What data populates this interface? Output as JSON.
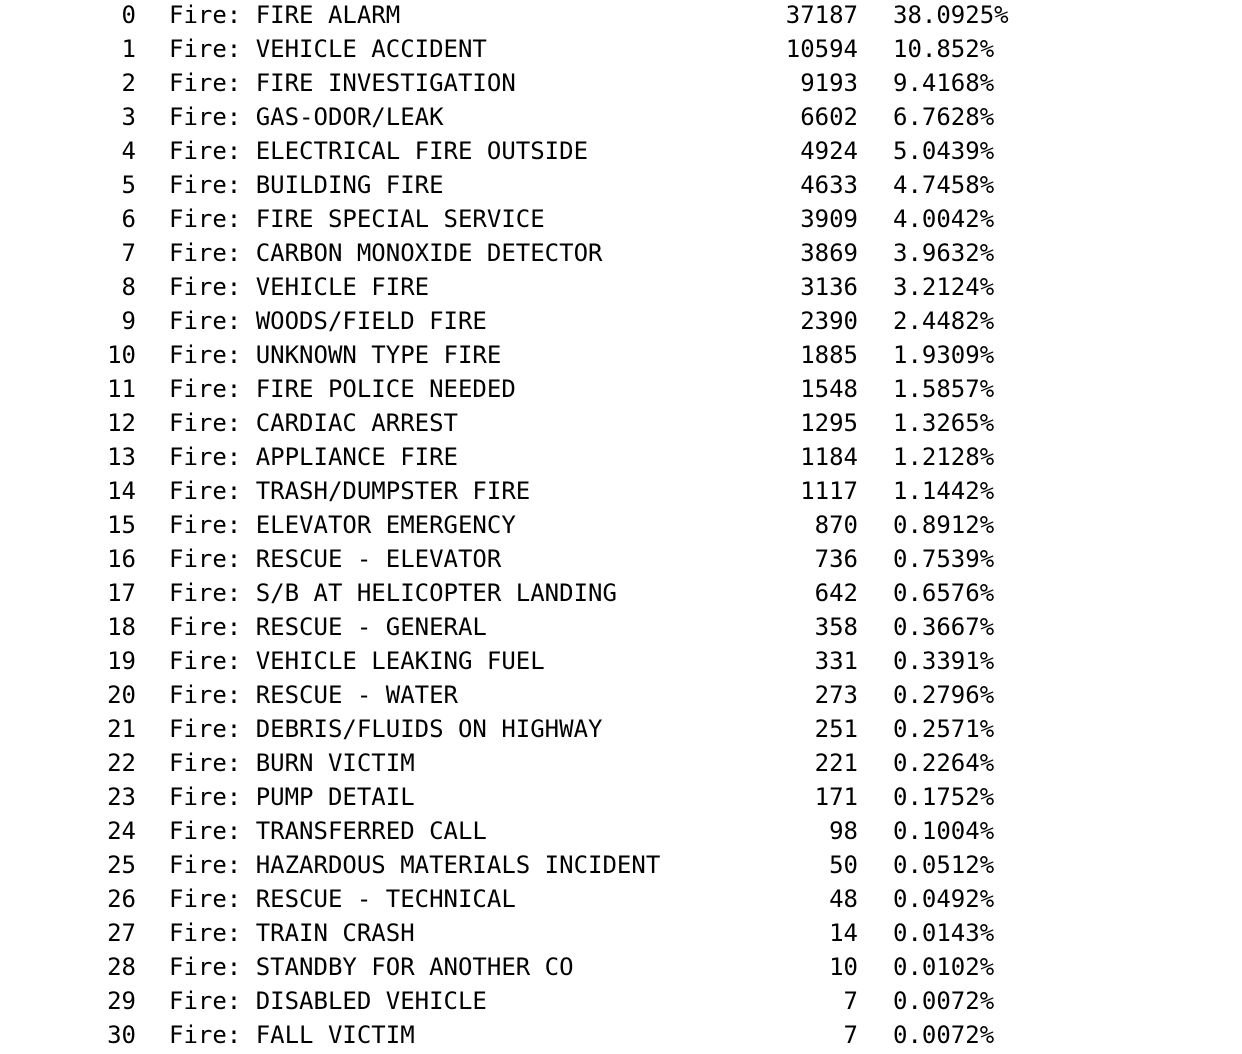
{
  "rows": [
    {
      "index": "0",
      "label": "Fire: FIRE ALARM",
      "count": "37187",
      "percent": "38.0925%"
    },
    {
      "index": "1",
      "label": "Fire: VEHICLE ACCIDENT",
      "count": "10594",
      "percent": "10.852%"
    },
    {
      "index": "2",
      "label": "Fire: FIRE INVESTIGATION",
      "count": "9193",
      "percent": "9.4168%"
    },
    {
      "index": "3",
      "label": "Fire: GAS-ODOR/LEAK",
      "count": "6602",
      "percent": "6.7628%"
    },
    {
      "index": "4",
      "label": "Fire: ELECTRICAL FIRE OUTSIDE",
      "count": "4924",
      "percent": "5.0439%"
    },
    {
      "index": "5",
      "label": "Fire: BUILDING FIRE",
      "count": "4633",
      "percent": "4.7458%"
    },
    {
      "index": "6",
      "label": "Fire: FIRE SPECIAL SERVICE",
      "count": "3909",
      "percent": "4.0042%"
    },
    {
      "index": "7",
      "label": "Fire: CARBON MONOXIDE DETECTOR",
      "count": "3869",
      "percent": "3.9632%"
    },
    {
      "index": "8",
      "label": "Fire: VEHICLE FIRE",
      "count": "3136",
      "percent": "3.2124%"
    },
    {
      "index": "9",
      "label": "Fire: WOODS/FIELD FIRE",
      "count": "2390",
      "percent": "2.4482%"
    },
    {
      "index": "10",
      "label": "Fire: UNKNOWN TYPE FIRE",
      "count": "1885",
      "percent": "1.9309%"
    },
    {
      "index": "11",
      "label": "Fire: FIRE POLICE NEEDED",
      "count": "1548",
      "percent": "1.5857%"
    },
    {
      "index": "12",
      "label": "Fire: CARDIAC ARREST",
      "count": "1295",
      "percent": "1.3265%"
    },
    {
      "index": "13",
      "label": "Fire: APPLIANCE FIRE",
      "count": "1184",
      "percent": "1.2128%"
    },
    {
      "index": "14",
      "label": "Fire: TRASH/DUMPSTER FIRE",
      "count": "1117",
      "percent": "1.1442%"
    },
    {
      "index": "15",
      "label": "Fire: ELEVATOR EMERGENCY",
      "count": "870",
      "percent": "0.8912%"
    },
    {
      "index": "16",
      "label": "Fire: RESCUE - ELEVATOR",
      "count": "736",
      "percent": "0.7539%"
    },
    {
      "index": "17",
      "label": "Fire: S/B AT HELICOPTER LANDING",
      "count": "642",
      "percent": "0.6576%"
    },
    {
      "index": "18",
      "label": "Fire: RESCUE - GENERAL",
      "count": "358",
      "percent": "0.3667%"
    },
    {
      "index": "19",
      "label": "Fire: VEHICLE LEAKING FUEL",
      "count": "331",
      "percent": "0.3391%"
    },
    {
      "index": "20",
      "label": "Fire: RESCUE - WATER",
      "count": "273",
      "percent": "0.2796%"
    },
    {
      "index": "21",
      "label": "Fire: DEBRIS/FLUIDS ON HIGHWAY",
      "count": "251",
      "percent": "0.2571%"
    },
    {
      "index": "22",
      "label": "Fire: BURN VICTIM",
      "count": "221",
      "percent": "0.2264%"
    },
    {
      "index": "23",
      "label": "Fire: PUMP DETAIL",
      "count": "171",
      "percent": "0.1752%"
    },
    {
      "index": "24",
      "label": "Fire: TRANSFERRED CALL",
      "count": "98",
      "percent": "0.1004%"
    },
    {
      "index": "25",
      "label": "Fire: HAZARDOUS MATERIALS INCIDENT",
      "count": "50",
      "percent": "0.0512%"
    },
    {
      "index": "26",
      "label": "Fire: RESCUE - TECHNICAL",
      "count": "48",
      "percent": "0.0492%"
    },
    {
      "index": "27",
      "label": "Fire: TRAIN CRASH",
      "count": "14",
      "percent": "0.0143%"
    },
    {
      "index": "28",
      "label": "Fire: STANDBY FOR ANOTHER CO",
      "count": "10",
      "percent": "0.0102%"
    },
    {
      "index": "29",
      "label": "Fire: DISABLED VEHICLE",
      "count": "7",
      "percent": "0.0072%"
    },
    {
      "index": "30",
      "label": "Fire: FALL VICTIM",
      "count": "7",
      "percent": "0.0072%"
    }
  ]
}
